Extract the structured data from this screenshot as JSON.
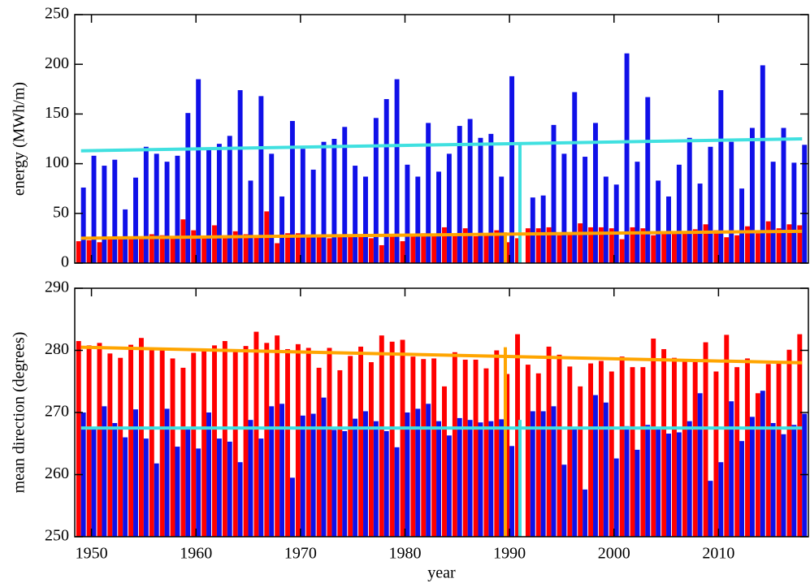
{
  "chart_data": [
    {
      "type": "bar",
      "ylabel": "energy (MWh/m)",
      "x": [
        1949,
        1950,
        1951,
        1952,
        1953,
        1954,
        1955,
        1956,
        1957,
        1958,
        1959,
        1960,
        1961,
        1962,
        1963,
        1964,
        1965,
        1966,
        1967,
        1968,
        1969,
        1970,
        1971,
        1972,
        1973,
        1974,
        1975,
        1976,
        1977,
        1978,
        1979,
        1980,
        1981,
        1982,
        1983,
        1984,
        1985,
        1986,
        1987,
        1988,
        1989,
        1990,
        1991,
        1992,
        1993,
        1994,
        1995,
        1996,
        1997,
        1998,
        1999,
        2000,
        2001,
        2002,
        2003,
        2004,
        2005,
        2006,
        2007,
        2008,
        2009,
        2010,
        2011,
        2012,
        2013,
        2014,
        2015,
        2016,
        2017,
        2018
      ],
      "xlim": [
        1948.4,
        2018.6
      ],
      "ylim": [
        0,
        250
      ],
      "yticks": [
        0,
        50,
        100,
        150,
        200,
        250
      ],
      "series": [
        {
          "color": "#ff0000",
          "values": [
            22,
            23,
            21,
            25,
            24,
            24,
            25,
            29,
            28,
            26,
            44,
            33,
            27,
            38,
            28,
            32,
            29,
            28,
            52,
            20,
            30,
            30,
            27,
            26,
            25,
            27,
            28,
            27,
            25,
            18,
            28,
            22,
            28,
            30,
            28,
            36,
            28,
            35,
            27,
            30,
            33,
            21,
            25,
            35,
            35,
            36,
            28,
            30,
            40,
            36,
            36,
            35,
            24,
            36,
            35,
            28,
            32,
            30,
            30,
            34,
            39,
            33,
            26,
            28,
            37,
            30,
            42,
            35,
            39,
            38
          ]
        },
        {
          "color": "#1010e8",
          "values": [
            76,
            108,
            98,
            104,
            54,
            86,
            117,
            110,
            102,
            108,
            151,
            185,
            114,
            120,
            128,
            174,
            83,
            168,
            110,
            67,
            143,
            115,
            94,
            122,
            125,
            137,
            98,
            87,
            146,
            165,
            185,
            99,
            87,
            141,
            92,
            110,
            138,
            145,
            126,
            130,
            87,
            188,
            null,
            66,
            68,
            139,
            110,
            172,
            107,
            141,
            87,
            79,
            211,
            102,
            167,
            83,
            67,
            99,
            126,
            80,
            117,
            174,
            122,
            75,
            136,
            199,
            102,
            136,
            101,
            119
          ]
        }
      ],
      "lines": [
        {
          "color": "#40e0e0",
          "x": [
            1949,
            2018
          ],
          "values": [
            113,
            125
          ]
        },
        {
          "color": "#ffa500",
          "x": [
            1949,
            2018
          ],
          "values": [
            25,
            32
          ]
        }
      ],
      "vlines": [
        {
          "color": "#ffa500",
          "x": 1989.6,
          "value": 31
        },
        {
          "color": "#40e0e0",
          "x": 1991,
          "value": 119
        }
      ]
    },
    {
      "type": "bar",
      "ylabel": "mean direction (degrees)",
      "xlabel": "year",
      "x": [
        1949,
        1950,
        1951,
        1952,
        1953,
        1954,
        1955,
        1956,
        1957,
        1958,
        1959,
        1960,
        1961,
        1962,
        1963,
        1964,
        1965,
        1966,
        1967,
        1968,
        1969,
        1970,
        1971,
        1972,
        1973,
        1974,
        1975,
        1976,
        1977,
        1978,
        1979,
        1980,
        1981,
        1982,
        1983,
        1984,
        1985,
        1986,
        1987,
        1988,
        1989,
        1990,
        1991,
        1992,
        1993,
        1994,
        1995,
        1996,
        1997,
        1998,
        1999,
        2000,
        2001,
        2002,
        2003,
        2004,
        2005,
        2006,
        2007,
        2008,
        2009,
        2010,
        2011,
        2012,
        2013,
        2014,
        2015,
        2016,
        2017,
        2018
      ],
      "xlim": [
        1948.4,
        2018.6
      ],
      "xticks": [
        1950,
        1960,
        1970,
        1980,
        1990,
        2000,
        2010
      ],
      "ylim": [
        250,
        290
      ],
      "yticks": [
        250,
        260,
        270,
        280,
        290
      ],
      "series": [
        {
          "color": "#ff0000",
          "values": [
            281.5,
            280.8,
            281.2,
            279.5,
            278.8,
            280.9,
            282,
            280.1,
            280,
            278.7,
            277.2,
            279.6,
            280.2,
            280.8,
            281.5,
            280,
            280.7,
            283,
            281.2,
            282.4,
            280.2,
            281,
            280.4,
            277.2,
            280.4,
            276.8,
            279.1,
            280.6,
            278.1,
            282.4,
            281.4,
            281.7,
            279,
            278.6,
            278.7,
            274.2,
            279.7,
            278.5,
            278.5,
            277.1,
            280,
            276.2,
            282.6,
            277.7,
            276.3,
            280.6,
            279.3,
            277.4,
            274.2,
            277.9,
            278.3,
            276.6,
            279,
            277.3,
            277.3,
            281.9,
            280.2,
            278.8,
            278.4,
            278.3,
            281.3,
            276.6,
            282.5,
            277.3,
            278.7,
            273.1,
            277.8,
            278,
            280.1,
            282.6
          ]
        },
        {
          "color": "#1010e8",
          "values": [
            270,
            267.5,
            271,
            268.3,
            266,
            270.5,
            265.8,
            261.8,
            270.6,
            264.5,
            267.4,
            264.2,
            270,
            265.8,
            265.3,
            262,
            268.8,
            265.8,
            271,
            271.4,
            259.5,
            269.5,
            269.8,
            272.4,
            267.2,
            267,
            269,
            270.2,
            268.6,
            267,
            264.4,
            270,
            270.6,
            271.4,
            268.6,
            266.3,
            269.1,
            268.8,
            268.4,
            268.6,
            268.9,
            264.6,
            null,
            270.2,
            270.2,
            271,
            261.6,
            267.5,
            257.6,
            272.8,
            271.6,
            262.6,
            267.8,
            264,
            268,
            267.5,
            266.6,
            266.8,
            268.6,
            273.1,
            259,
            262,
            271.8,
            265.4,
            269.3,
            273.5,
            268.3,
            266.5,
            268,
            269.8
          ]
        }
      ],
      "lines": [
        {
          "color": "#ffa500",
          "x": [
            1949,
            2018
          ],
          "values": [
            280.5,
            278
          ]
        },
        {
          "color": "#40e0e0",
          "x": [
            1949,
            2018
          ],
          "values": [
            267.5,
            267.5
          ]
        }
      ],
      "vlines": [
        {
          "color": "#ffa500",
          "x": 1989.6,
          "value": 280.5
        },
        {
          "color": "#40e0e0",
          "x": 1991,
          "value": 268.8
        }
      ]
    }
  ]
}
